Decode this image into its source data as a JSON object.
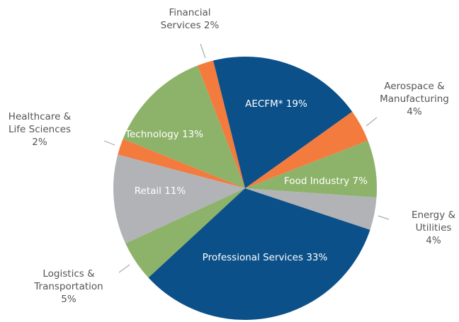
{
  "chart_data": {
    "type": "pie",
    "categories": [
      "AECFM*",
      "Aerospace & Manufacturing",
      "Food Industry",
      "Energy & Utilities",
      "Professional Services",
      "Logistics & Transportation",
      "Retail",
      "Healthcare & Life Sciences",
      "Technology",
      "Financial Services"
    ],
    "values": [
      19,
      4,
      7,
      4,
      33,
      5,
      11,
      2,
      13,
      2
    ],
    "value_labels": [
      "19%",
      "4%",
      "7%",
      "4%",
      "33%",
      "5%",
      "11%",
      "2%",
      "13%",
      "2%"
    ],
    "colors": [
      "#0b5089",
      "#f47b3e",
      "#8db36a",
      "#b1b3b6",
      "#0b5089",
      "#8db36a",
      "#b1b3b6",
      "#f47b3e",
      "#8db36a",
      "#f47b3e"
    ]
  }
}
